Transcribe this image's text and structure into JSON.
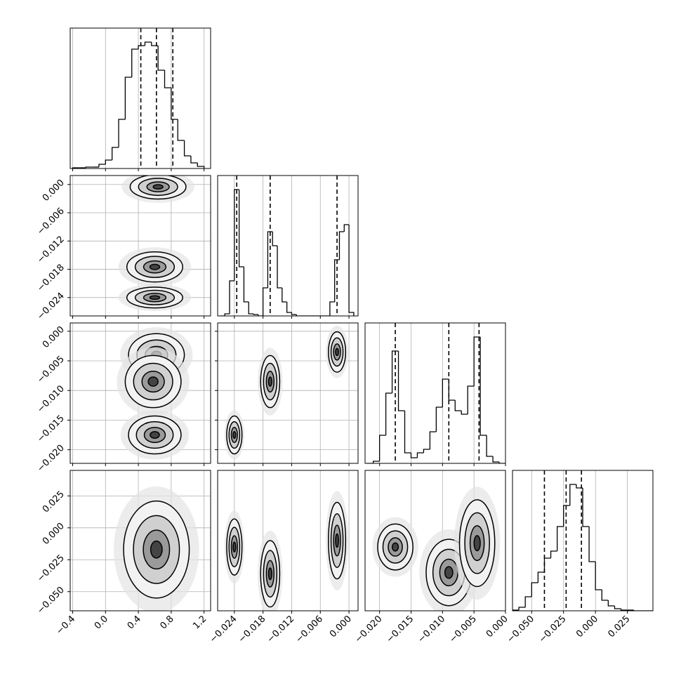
{
  "chart_data": [
    {
      "type": "histogram",
      "bins": [
        -0.4,
        -0.32,
        -0.24,
        -0.16,
        -0.08,
        0.0,
        0.08,
        0.16,
        0.24,
        0.32,
        0.4,
        0.48,
        0.56,
        0.64,
        0.72,
        0.8,
        0.88,
        0.96,
        1.04,
        1.12,
        1.2
      ],
      "counts": [
        1,
        1,
        2,
        2,
        6,
        12,
        30,
        70,
        130,
        170,
        175,
        180,
        175,
        140,
        115,
        70,
        40,
        18,
        8,
        3
      ],
      "quantiles": [
        0.43,
        0.62,
        0.82
      ],
      "xlim": [
        -0.43,
        1.28
      ],
      "xticks": [
        {
          "value": -0.4,
          "label": "−0.4"
        },
        {
          "value": 0.0,
          "label": "0.0"
        },
        0.4,
        0.8,
        1.2
      ],
      "ylim": [
        0,
        200
      ]
    },
    {
      "type": "density",
      "blobs": [
        {
          "x": 0.64,
          "y": -0.0005,
          "sx": 0.17,
          "sy": 0.0013
        },
        {
          "x": 0.6,
          "y": -0.0175,
          "sx": 0.17,
          "sy": 0.0016
        },
        {
          "x": 0.6,
          "y": -0.024,
          "sx": 0.17,
          "sy": 0.0011
        }
      ],
      "xlim": [
        -0.43,
        1.28
      ],
      "xticks": [
        {
          "value": -0.4,
          "label": "−0.4"
        },
        {
          "value": 0.0,
          "label": "0.0"
        },
        0.4,
        0.8,
        1.2
      ],
      "ylim": [
        -0.0279,
        0.0019
      ],
      "yticks": [
        {
          "value": -0.024,
          "label": "−0.024"
        },
        {
          "value": -0.018,
          "label": "−0.018"
        },
        {
          "value": -0.012,
          "label": "−0.012"
        },
        {
          "value": -0.006,
          "label": "−0.006"
        },
        {
          "value": 0,
          "label": "0.000"
        }
      ]
    },
    {
      "type": "histogram",
      "bins": [
        -0.027,
        -0.026,
        -0.025,
        -0.024,
        -0.023,
        -0.022,
        -0.021,
        -0.02,
        -0.019,
        -0.018,
        -0.017,
        -0.016,
        -0.015,
        -0.014,
        -0.013,
        -0.012,
        -0.011,
        -0.01,
        -0.009,
        -0.008,
        -0.007,
        -0.006,
        -0.005,
        -0.004,
        -0.003,
        -0.002,
        -0.001,
        0.0,
        0.001
      ],
      "counts": [
        0,
        3,
        50,
        180,
        70,
        20,
        3,
        2,
        0,
        40,
        120,
        100,
        40,
        20,
        5,
        2,
        0,
        0,
        0,
        0,
        0,
        0,
        0,
        20,
        80,
        120,
        130,
        5
      ],
      "quantiles": [
        -0.0235,
        -0.0165,
        -0.0025
      ],
      "xlim": [
        -0.0275,
        0.0019
      ],
      "xticks": [
        {
          "value": -0.024,
          "label": "−0.024"
        },
        {
          "value": -0.018,
          "label": "−0.018"
        },
        {
          "value": -0.012,
          "label": "−0.012"
        },
        {
          "value": -0.006,
          "label": "−0.006"
        },
        {
          "value": 0,
          "label": "0.000"
        }
      ],
      "ylim": [
        0,
        200
      ]
    },
    {
      "type": "density",
      "blobs": [
        {
          "x": 0.62,
          "y": -0.004,
          "sx": 0.17,
          "sy": 0.0018
        },
        {
          "x": 0.58,
          "y": -0.0085,
          "sx": 0.17,
          "sy": 0.0022
        },
        {
          "x": 0.6,
          "y": -0.0175,
          "sx": 0.16,
          "sy": 0.0016
        }
      ],
      "xlim": [
        -0.43,
        1.28
      ],
      "xticks": [
        {
          "value": -0.4,
          "label": "−0.4"
        },
        {
          "value": 0.0,
          "label": "0.0"
        },
        0.4,
        0.8,
        1.2
      ],
      "ylim": [
        -0.0223,
        0.0014
      ],
      "yticks": [
        {
          "value": -0.02,
          "label": "−0.020"
        },
        {
          "value": -0.015,
          "label": "−0.015"
        },
        {
          "value": -0.01,
          "label": "−0.010"
        },
        {
          "value": -0.005,
          "label": "−0.005"
        },
        {
          "value": 0,
          "label": "0.000"
        }
      ]
    },
    {
      "type": "density",
      "blobs": [
        {
          "x": -0.024,
          "y": -0.0175,
          "sx": 0.0008,
          "sy": 0.0016
        },
        {
          "x": -0.0165,
          "y": -0.0085,
          "sx": 0.001,
          "sy": 0.0022
        },
        {
          "x": -0.0025,
          "y": -0.0035,
          "sx": 0.0009,
          "sy": 0.0017
        }
      ],
      "xlim": [
        -0.0275,
        0.0019
      ],
      "xticks": [
        {
          "value": -0.024,
          "label": "−0.024"
        },
        {
          "value": -0.018,
          "label": "−0.018"
        },
        {
          "value": -0.012,
          "label": "−0.012"
        },
        {
          "value": -0.006,
          "label": "−0.006"
        },
        {
          "value": 0,
          "label": "0.000"
        }
      ],
      "ylim": [
        -0.0223,
        0.0014
      ],
      "yticks": [
        {
          "value": -0.02,
          "label": "−0.020"
        },
        {
          "value": -0.015,
          "label": "−0.015"
        },
        {
          "value": -0.01,
          "label": "−0.010"
        },
        {
          "value": -0.005,
          "label": "−0.005"
        },
        {
          "value": 0,
          "label": "0.000"
        }
      ]
    },
    {
      "type": "histogram",
      "bins": [
        -0.022,
        -0.021,
        -0.02,
        -0.019,
        -0.018,
        -0.017,
        -0.016,
        -0.015,
        -0.014,
        -0.013,
        -0.012,
        -0.011,
        -0.01,
        -0.009,
        -0.008,
        -0.007,
        -0.006,
        -0.005,
        -0.004,
        -0.003,
        -0.002,
        -0.001,
        0.0
      ],
      "counts": [
        0,
        3,
        40,
        100,
        160,
        75,
        15,
        8,
        15,
        20,
        45,
        80,
        120,
        90,
        75,
        70,
        110,
        180,
        40,
        10,
        2,
        0
      ],
      "quantiles": [
        -0.0175,
        -0.009,
        -0.0042
      ],
      "xlim": [
        -0.0223,
        0.0
      ],
      "xticks": [
        {
          "value": -0.02,
          "label": "−0.020"
        },
        {
          "value": -0.015,
          "label": "−0.015"
        },
        {
          "value": -0.01,
          "label": "−0.010"
        },
        {
          "value": -0.005,
          "label": "−0.005"
        },
        {
          "value": 0,
          "label": "0.000"
        }
      ],
      "ylim": [
        0,
        200
      ]
    },
    {
      "type": "density",
      "blobs": [
        {
          "x": 0.62,
          "y": -0.017,
          "sx": 0.2,
          "sy": 0.019
        }
      ],
      "xlim": [
        -0.43,
        1.28
      ],
      "xticks": [
        {
          "value": -0.4,
          "label": "−0.4"
        },
        {
          "value": 0.0,
          "label": "0.0"
        },
        0.4,
        0.8,
        1.2
      ],
      "ylim": [
        -0.065,
        0.045
      ],
      "yticks": [
        {
          "value": -0.05,
          "label": "−0.050"
        },
        {
          "value": -0.025,
          "label": "−0.025"
        },
        {
          "value": 0,
          "label": "0.000"
        },
        0.025
      ]
    },
    {
      "type": "density",
      "blobs": [
        {
          "x": -0.024,
          "y": -0.015,
          "sx": 0.0008,
          "sy": 0.011
        },
        {
          "x": -0.0165,
          "y": -0.036,
          "sx": 0.001,
          "sy": 0.013
        },
        {
          "x": -0.0025,
          "y": -0.01,
          "sx": 0.0009,
          "sy": 0.015
        }
      ],
      "xlim": [
        -0.0275,
        0.0019
      ],
      "xticks": [
        {
          "value": -0.024,
          "label": "−0.024"
        },
        {
          "value": -0.018,
          "label": "−0.018"
        },
        {
          "value": -0.012,
          "label": "−0.012"
        },
        {
          "value": -0.006,
          "label": "−0.006"
        },
        {
          "value": 0,
          "label": "0.000"
        }
      ],
      "ylim": [
        -0.065,
        0.045
      ]
    },
    {
      "type": "density",
      "blobs": [
        {
          "x": -0.0175,
          "y": -0.015,
          "sx": 0.0014,
          "sy": 0.009
        },
        {
          "x": -0.009,
          "y": -0.035,
          "sx": 0.0018,
          "sy": 0.013
        },
        {
          "x": -0.0045,
          "y": -0.012,
          "sx": 0.0014,
          "sy": 0.017
        }
      ],
      "xlim": [
        -0.0223,
        0.0
      ],
      "xticks": [
        {
          "value": -0.02,
          "label": "−0.020"
        },
        {
          "value": -0.015,
          "label": "−0.015"
        },
        {
          "value": -0.01,
          "label": "−0.010"
        },
        {
          "value": -0.005,
          "label": "−0.005"
        },
        {
          "value": 0,
          "label": "0.000"
        }
      ],
      "ylim": [
        -0.065,
        0.045
      ]
    },
    {
      "type": "histogram",
      "bins": [
        -0.065,
        -0.06,
        -0.055,
        -0.05,
        -0.045,
        -0.04,
        -0.035,
        -0.03,
        -0.025,
        -0.02,
        -0.015,
        -0.01,
        -0.005,
        0.0,
        0.005,
        0.01,
        0.015,
        0.02,
        0.025,
        0.03,
        0.035,
        0.04,
        0.045
      ],
      "counts": [
        1,
        5,
        20,
        40,
        55,
        75,
        85,
        120,
        150,
        180,
        175,
        120,
        70,
        30,
        15,
        7,
        3,
        1,
        1,
        0,
        0,
        0
      ],
      "quantiles": [
        -0.04,
        -0.023,
        -0.011
      ],
      "xlim": [
        -0.065,
        0.045
      ],
      "xticks": [
        {
          "value": -0.05,
          "label": "−0.050"
        },
        {
          "value": -0.025,
          "label": "−0.025"
        },
        {
          "value": 0,
          "label": "0.000"
        },
        0.025
      ],
      "ylim": [
        0,
        200
      ]
    }
  ]
}
